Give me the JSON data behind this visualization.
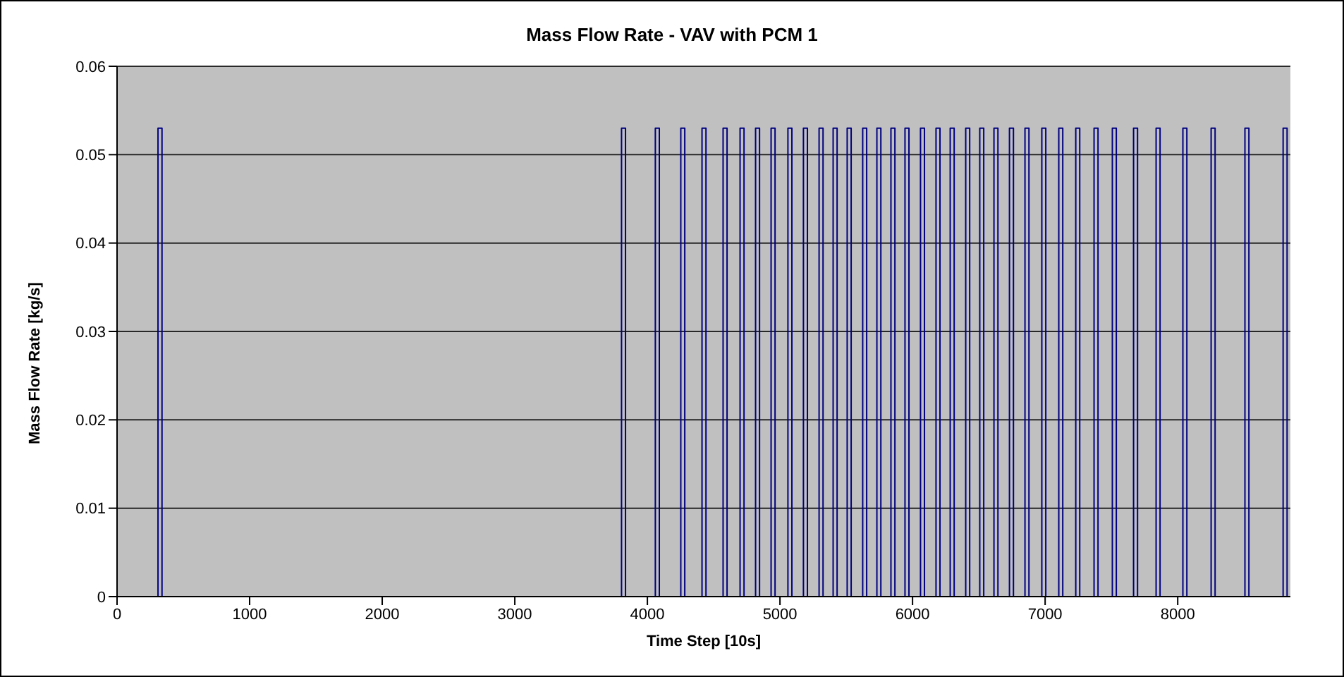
{
  "chart_data": {
    "type": "step",
    "title": "Mass Flow Rate - VAV with PCM 1",
    "xlabel": "Time Step [10s]",
    "ylabel": "Mass Flow Rate [kg/s]",
    "x": [
      0,
      309,
      339,
      3805,
      3835,
      4060,
      4090,
      4252,
      4282,
      4412,
      4442,
      4571,
      4601,
      4699,
      4729,
      4816,
      4846,
      4933,
      4963,
      5060,
      5090,
      5177,
      5207,
      5295,
      5325,
      5401,
      5431,
      5507,
      5537,
      5624,
      5654,
      5731,
      5761,
      5837,
      5867,
      5943,
      5973,
      6060,
      6090,
      6177,
      6207,
      6284,
      6314,
      6401,
      6431,
      6507,
      6537,
      6614,
      6644,
      6731,
      6761,
      6848,
      6878,
      6975,
      7005,
      7103,
      7133,
      7231,
      7261,
      7369,
      7399,
      7507,
      7537,
      7667,
      7697,
      7837,
      7867,
      8039,
      8069,
      8252,
      8282,
      8507,
      8537,
      8795,
      8825,
      8850
    ],
    "values": [
      0,
      0.053,
      0,
      0.053,
      0,
      0.053,
      0,
      0.053,
      0,
      0.053,
      0,
      0.053,
      0,
      0.053,
      0,
      0.053,
      0,
      0.053,
      0,
      0.053,
      0,
      0.053,
      0,
      0.053,
      0,
      0.053,
      0,
      0.053,
      0,
      0.053,
      0,
      0.053,
      0,
      0.053,
      0,
      0.053,
      0,
      0.053,
      0,
      0.053,
      0,
      0.053,
      0,
      0.053,
      0,
      0.053,
      0,
      0.053,
      0,
      0.053,
      0,
      0.053,
      0,
      0.053,
      0,
      0.053,
      0,
      0.053,
      0,
      0.053,
      0,
      0.053,
      0,
      0.053,
      0,
      0.053,
      0,
      0.053,
      0,
      0.053,
      0,
      0.053,
      0,
      0.053,
      0,
      0
    ],
    "color": "#000080",
    "xlim": [
      0,
      8850
    ],
    "xticks": [
      0,
      1000,
      2000,
      3000,
      4000,
      5000,
      6000,
      7000,
      8000
    ],
    "ylim": [
      0,
      0.06
    ],
    "yticks": [
      0,
      0.01,
      0.02,
      0.03,
      0.04,
      0.05,
      0.06
    ],
    "grid": "y",
    "legend": false
  }
}
